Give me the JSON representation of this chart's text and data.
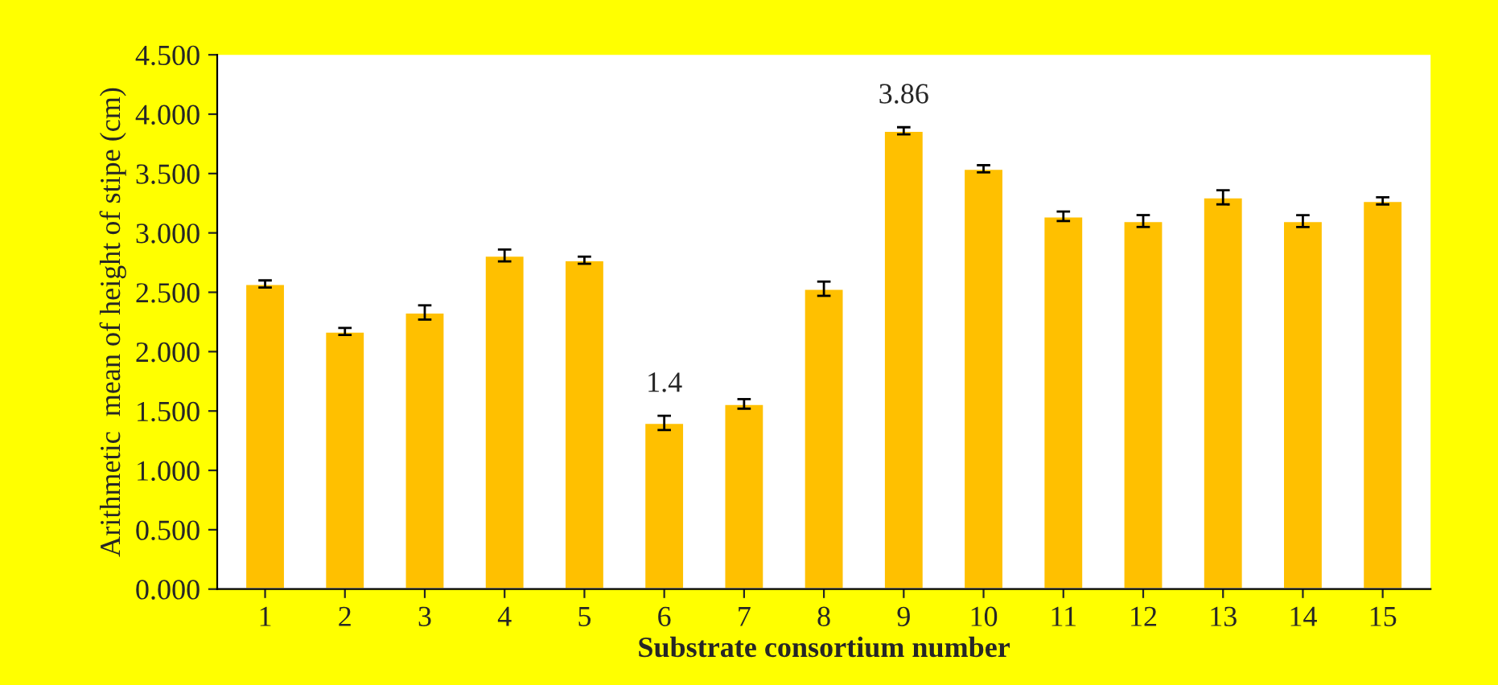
{
  "chart_data": {
    "type": "bar",
    "xlabel": "Substrate consortium number",
    "ylabel": "Arithmetic  mean of height of stipe (cm)",
    "categories": [
      "1",
      "2",
      "3",
      "4",
      "5",
      "6",
      "7",
      "8",
      "9",
      "10",
      "11",
      "12",
      "13",
      "14",
      "15"
    ],
    "values": [
      2.57,
      2.17,
      2.33,
      2.81,
      2.77,
      1.4,
      1.56,
      2.53,
      3.86,
      3.54,
      3.14,
      3.1,
      3.3,
      3.1,
      3.27
    ],
    "errors": [
      0.03,
      0.03,
      0.06,
      0.05,
      0.03,
      0.06,
      0.04,
      0.06,
      0.03,
      0.03,
      0.04,
      0.05,
      0.06,
      0.05,
      0.03
    ],
    "value_labels": [
      null,
      null,
      null,
      null,
      null,
      "1.4",
      null,
      null,
      "3.86",
      null,
      null,
      null,
      null,
      null,
      null
    ],
    "color": "#ffc000",
    "ylim": [
      0,
      4.5
    ],
    "yticks": [
      {
        "value": 0,
        "label": "0.000"
      },
      {
        "value": 0.5,
        "label": "0.500"
      },
      {
        "value": 1,
        "label": "1.000"
      },
      {
        "value": 1.5,
        "label": "1.500"
      },
      {
        "value": 2,
        "label": "2.000"
      },
      {
        "value": 2.5,
        "label": "2.500"
      },
      {
        "value": 3,
        "label": "3.000"
      },
      {
        "value": 3.5,
        "label": "3.500"
      },
      {
        "value": 4,
        "label": "4.000"
      },
      {
        "value": 4.5,
        "label": "4.500"
      }
    ],
    "grid": false,
    "legend": false
  }
}
